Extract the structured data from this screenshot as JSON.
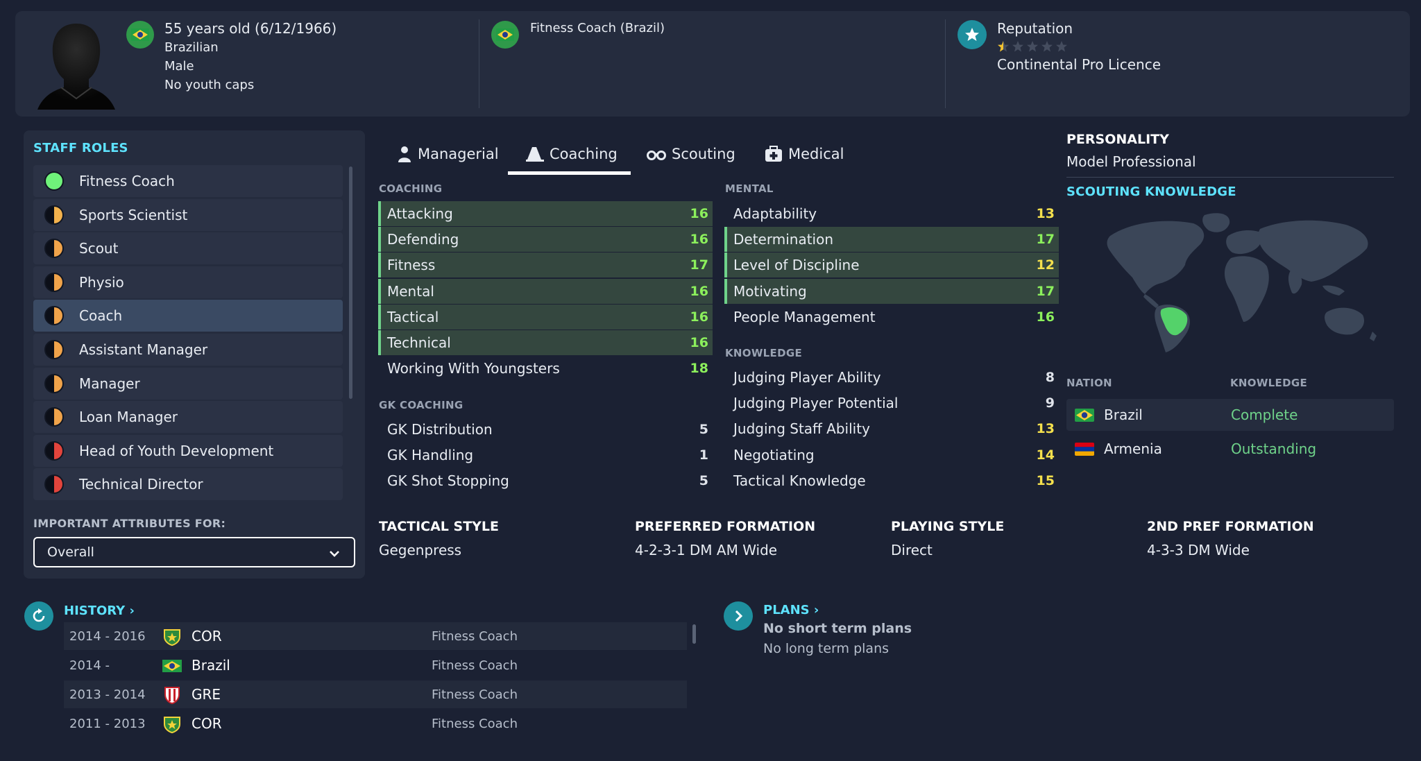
{
  "profile": {
    "age_line": "55 years old (6/12/1966)",
    "nationality": "Brazilian",
    "gender": "Male",
    "caps": "No youth caps",
    "job": "Fitness Coach (Brazil)",
    "reputation_label": "Reputation",
    "reputation_stars": 0.5,
    "reputation_max": 5,
    "licence": "Continental Pro Licence"
  },
  "staff_roles": {
    "title": "STAFF ROLES",
    "items": [
      {
        "label": "Fitness Coach",
        "color": "#6ff27a",
        "selected": false
      },
      {
        "label": "Sports Scientist",
        "color": "#f3b24d",
        "selected": false
      },
      {
        "label": "Scout",
        "color": "#f0a34a",
        "selected": false
      },
      {
        "label": "Physio",
        "color": "#f0a34a",
        "selected": false
      },
      {
        "label": "Coach",
        "color": "#f0a34a",
        "selected": true
      },
      {
        "label": "Assistant Manager",
        "color": "#f0a34a",
        "selected": false
      },
      {
        "label": "Manager",
        "color": "#f0a34a",
        "selected": false
      },
      {
        "label": "Loan Manager",
        "color": "#f0a34a",
        "selected": false
      },
      {
        "label": "Head of Youth Development",
        "color": "#e2443c",
        "selected": false
      },
      {
        "label": "Technical Director",
        "color": "#e2443c",
        "selected": false
      }
    ],
    "important_label": "IMPORTANT ATTRIBUTES FOR:",
    "important_value": "Overall"
  },
  "tabs": [
    {
      "label": "Managerial",
      "icon": "person-icon",
      "active": false
    },
    {
      "label": "Coaching",
      "icon": "cone-icon",
      "active": true
    },
    {
      "label": "Scouting",
      "icon": "binoculars-icon",
      "active": false
    },
    {
      "label": "Medical",
      "icon": "medical-kit-icon",
      "active": false
    }
  ],
  "coaching": {
    "title": "COACHING",
    "rows": [
      {
        "label": "Attacking",
        "value": "16",
        "hl": true,
        "tone": "green"
      },
      {
        "label": "Defending",
        "value": "16",
        "hl": true,
        "tone": "green"
      },
      {
        "label": "Fitness",
        "value": "17",
        "hl": true,
        "tone": "green"
      },
      {
        "label": "Mental",
        "value": "16",
        "hl": true,
        "tone": "green"
      },
      {
        "label": "Tactical",
        "value": "16",
        "hl": true,
        "tone": "green"
      },
      {
        "label": "Technical",
        "value": "16",
        "hl": true,
        "tone": "green"
      },
      {
        "label": "Working With Youngsters",
        "value": "18",
        "hl": false,
        "tone": "green"
      }
    ]
  },
  "gk_coaching": {
    "title": "GK COACHING",
    "rows": [
      {
        "label": "GK Distribution",
        "value": "5",
        "hl": false,
        "tone": "white"
      },
      {
        "label": "GK Handling",
        "value": "1",
        "hl": false,
        "tone": "white"
      },
      {
        "label": "GK Shot Stopping",
        "value": "5",
        "hl": false,
        "tone": "white"
      }
    ]
  },
  "mental": {
    "title": "MENTAL",
    "rows": [
      {
        "label": "Adaptability",
        "value": "13",
        "hl": false,
        "tone": "yellow"
      },
      {
        "label": "Determination",
        "value": "17",
        "hl": true,
        "tone": "green"
      },
      {
        "label": "Level of Discipline",
        "value": "12",
        "hl": true,
        "tone": "yellow"
      },
      {
        "label": "Motivating",
        "value": "17",
        "hl": true,
        "tone": "green"
      },
      {
        "label": "People Management",
        "value": "16",
        "hl": false,
        "tone": "green"
      }
    ]
  },
  "knowledge": {
    "title": "KNOWLEDGE",
    "rows": [
      {
        "label": "Judging Player Ability",
        "value": "8",
        "hl": false,
        "tone": "white"
      },
      {
        "label": "Judging Player Potential",
        "value": "9",
        "hl": false,
        "tone": "white"
      },
      {
        "label": "Judging Staff Ability",
        "value": "13",
        "hl": false,
        "tone": "yellow"
      },
      {
        "label": "Negotiating",
        "value": "14",
        "hl": false,
        "tone": "yellow"
      },
      {
        "label": "Tactical Knowledge",
        "value": "15",
        "hl": false,
        "tone": "yellow"
      }
    ]
  },
  "tactics": [
    {
      "head": "TACTICAL STYLE",
      "value": "Gegenpress"
    },
    {
      "head": "PREFERRED FORMATION",
      "value": "4-2-3-1 DM AM Wide"
    },
    {
      "head": "PLAYING STYLE",
      "value": "Direct"
    },
    {
      "head": "2ND PREF FORMATION",
      "value": "4-3-3 DM Wide"
    }
  ],
  "personality": {
    "title": "PERSONALITY",
    "value": "Model Professional"
  },
  "scouting_knowledge": {
    "title": "SCOUTING KNOWLEDGE",
    "nation_head": "NATION",
    "knowledge_head": "KNOWLEDGE",
    "rows": [
      {
        "nation": "Brazil",
        "level": "Complete",
        "flag": "brazil-flag"
      },
      {
        "nation": "Armenia",
        "level": "Outstanding",
        "flag": "armenia-flag"
      }
    ]
  },
  "history": {
    "title": "HISTORY",
    "rows": [
      {
        "years": "2014 - 2016",
        "club": "COR",
        "role": "Fitness Coach",
        "badge": "cor-badge"
      },
      {
        "years": "2014 -",
        "club": "Brazil",
        "role": "Fitness Coach",
        "badge": "brazil-flag"
      },
      {
        "years": "2013 - 2014",
        "club": "GRE",
        "role": "Fitness Coach",
        "badge": "gre-badge"
      },
      {
        "years": "2011 - 2013",
        "club": "COR",
        "role": "Fitness Coach",
        "badge": "cor-badge"
      }
    ]
  },
  "plans": {
    "title": "PLANS",
    "short_term": "No short term plans",
    "long_term": "No long term plans"
  }
}
